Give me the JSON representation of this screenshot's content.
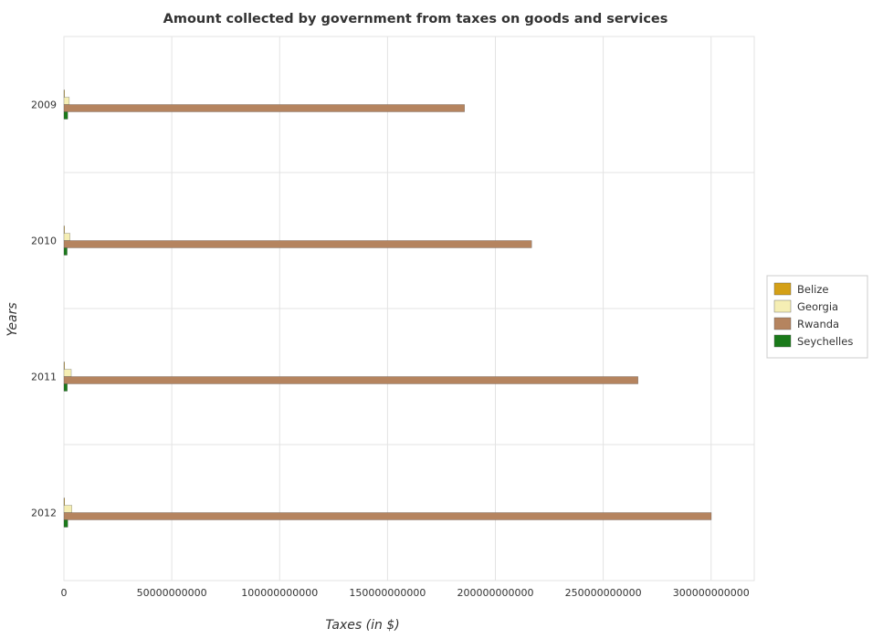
{
  "chart_data": {
    "type": "bar",
    "orientation": "horizontal",
    "title": "Amount collected by government from taxes on goods and services",
    "xlabel": "Taxes (in $)",
    "ylabel": "Years",
    "xlim": [
      0,
      320000000000
    ],
    "x_ticks": [
      0,
      50000000000,
      100000000000,
      150000000000,
      200000000000,
      250000000000,
      300000000000
    ],
    "x_tick_labels": [
      "0",
      "50000000000",
      "100000000000",
      "150000000000",
      "200000000000",
      "250000000000",
      "300000000000"
    ],
    "categories": [
      "2009",
      "2010",
      "2011",
      "2012"
    ],
    "grid": true,
    "legend_position": "right",
    "series": [
      {
        "name": "Belize",
        "color": "#d4a017",
        "values": [
          230000000,
          250000000,
          270000000,
          300000000
        ]
      },
      {
        "name": "Georgia",
        "color": "#f5eeb4",
        "values": [
          2500000000,
          2800000000,
          3400000000,
          3700000000
        ]
      },
      {
        "name": "Rwanda",
        "color": "#b5845f",
        "values": [
          185700000000,
          216800000000,
          266100000000,
          300100000000
        ]
      },
      {
        "name": "Seychelles",
        "color": "#1a7a1a",
        "values": [
          1750000000,
          1500000000,
          1550000000,
          1800000000
        ]
      }
    ]
  }
}
